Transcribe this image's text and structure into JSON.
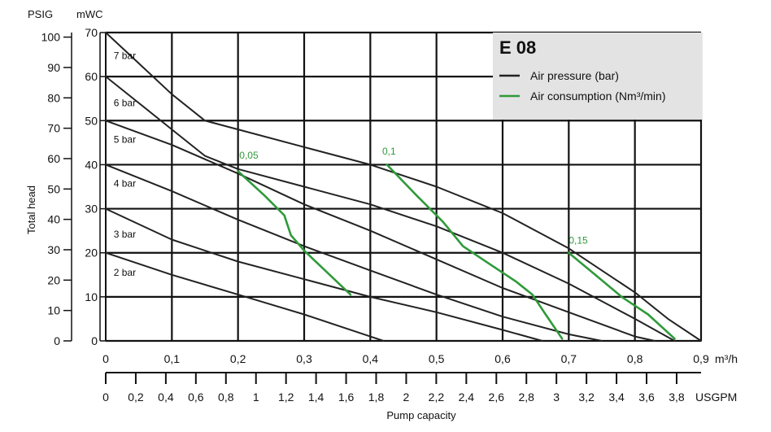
{
  "colors": {
    "pressure": "#222222",
    "consumption": "#2e9a3a",
    "legend_bg": "#e3e3e3",
    "grid": "#111111"
  },
  "chart_data": {
    "type": "line",
    "title": "E 08",
    "xlabel": "Pump capacity",
    "ylabel": "Total head",
    "x_unit": "m³/h",
    "x2_unit": "USGPM",
    "y_units": {
      "left_outer": "PSIG",
      "left_inner": "mWC"
    },
    "xlim": [
      0,
      0.9
    ],
    "ylim": [
      0,
      70
    ],
    "grid": true,
    "legend_position": "top-right",
    "legend": [
      {
        "label": "Air pressure (bar)",
        "color": "#222222"
      },
      {
        "label": "Air consumption (Nm³/min)",
        "color": "#2e9a3a"
      }
    ],
    "x_ticks": [
      "0",
      "0,1",
      "0,2",
      "0,3",
      "0,4",
      "0,5",
      "0,6",
      "0,7",
      "0,8",
      "0,9"
    ],
    "usgpm_ticks": [
      "0",
      "0,2",
      "0,4",
      "0,6",
      "0,8",
      "1",
      "1,2",
      "1,4",
      "1,6",
      "1,8",
      "2",
      "2,2",
      "2,4",
      "2,6",
      "2,8",
      "3",
      "3,2",
      "3,4",
      "3,6",
      "3,8"
    ],
    "mwc_ticks": [
      "0",
      "10",
      "20",
      "30",
      "40",
      "50",
      "60",
      "70"
    ],
    "psig_ticks": [
      "0",
      "10",
      "20",
      "30",
      "40",
      "50",
      "60",
      "70",
      "80",
      "90",
      "100"
    ],
    "series": [
      {
        "name": "7 bar",
        "kind": "pressure",
        "x": [
          0,
          0.05,
          0.1,
          0.15,
          0.2,
          0.3,
          0.4,
          0.5,
          0.6,
          0.65,
          0.7,
          0.75,
          0.8,
          0.85,
          0.9
        ],
        "y": [
          70,
          63,
          56,
          50,
          48,
          44,
          40,
          35,
          29,
          25,
          21,
          16,
          11,
          5,
          0
        ]
      },
      {
        "name": "6 bar",
        "kind": "pressure",
        "x": [
          0,
          0.05,
          0.1,
          0.15,
          0.2,
          0.3,
          0.4,
          0.5,
          0.6,
          0.7,
          0.8,
          0.86
        ],
        "y": [
          60,
          54,
          48,
          42,
          39,
          35,
          31,
          26,
          20,
          13,
          5,
          0
        ]
      },
      {
        "name": "5 bar",
        "kind": "pressure",
        "x": [
          0,
          0.1,
          0.2,
          0.3,
          0.4,
          0.5,
          0.6,
          0.7,
          0.8,
          0.83
        ],
        "y": [
          50,
          44.5,
          38,
          31,
          25,
          18.5,
          12,
          6.5,
          1,
          0
        ]
      },
      {
        "name": "4 bar",
        "kind": "pressure",
        "x": [
          0,
          0.1,
          0.2,
          0.3,
          0.4,
          0.5,
          0.6,
          0.7,
          0.75
        ],
        "y": [
          40,
          34,
          27.5,
          21.5,
          16,
          10.5,
          5.5,
          1.5,
          0
        ]
      },
      {
        "name": "3 bar",
        "kind": "pressure",
        "x": [
          0,
          0.1,
          0.2,
          0.3,
          0.4,
          0.5,
          0.6,
          0.66
        ],
        "y": [
          30,
          23,
          18,
          14,
          10,
          6.5,
          2.5,
          0
        ]
      },
      {
        "name": "2 bar",
        "kind": "pressure",
        "x": [
          0,
          0.1,
          0.2,
          0.3,
          0.4,
          0.42
        ],
        "y": [
          20,
          15,
          10.5,
          6,
          1,
          0
        ]
      },
      {
        "name": "0,05",
        "kind": "consumption",
        "x": [
          0.2,
          0.24,
          0.27,
          0.28,
          0.3,
          0.335,
          0.37
        ],
        "y": [
          38.5,
          33,
          28.5,
          24,
          20.5,
          15.5,
          10.5
        ]
      },
      {
        "name": "0,1",
        "kind": "consumption",
        "x": [
          0.425,
          0.47,
          0.51,
          0.54,
          0.58,
          0.62,
          0.645,
          0.665,
          0.69
        ],
        "y": [
          40,
          33,
          27,
          21.5,
          17.5,
          13.5,
          10.5,
          6,
          0.5
        ]
      },
      {
        "name": "0,15",
        "kind": "consumption",
        "x": [
          0.7,
          0.74,
          0.78,
          0.82,
          0.86
        ],
        "y": [
          20,
          15,
          10,
          6,
          0.5
        ]
      }
    ],
    "curve_labels": [
      "7 bar",
      "6 bar",
      "5 bar",
      "4 bar",
      "3 bar",
      "2 bar"
    ],
    "consumption_labels": [
      "0,05",
      "0,1",
      "0,15"
    ]
  }
}
